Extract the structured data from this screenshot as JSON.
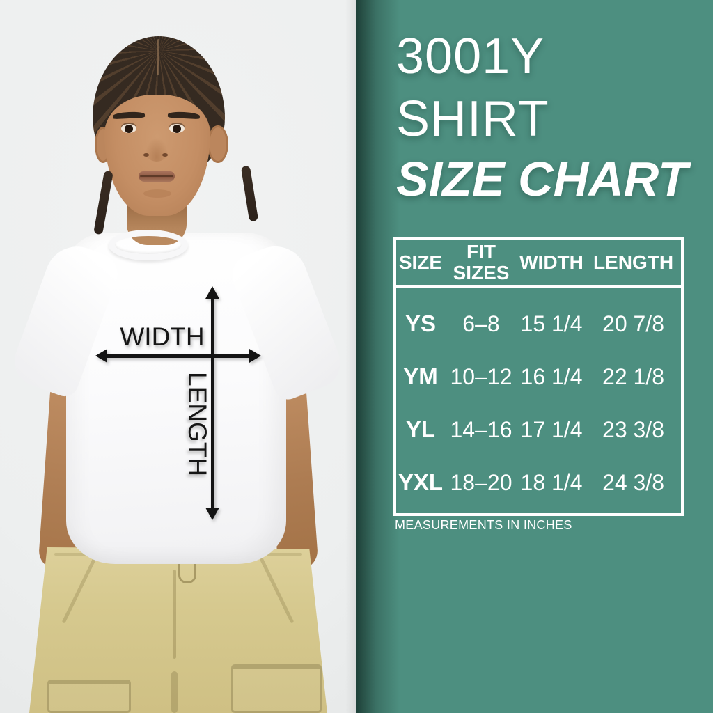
{
  "photo": {
    "description": "child model wearing white t-shirt and khaki cargo shorts",
    "width_label": "WIDTH",
    "length_label": "LENGTH",
    "arrow_color": "#141414",
    "background_color": "#edefef",
    "shirt_color": "#fbfbfc",
    "shorts_color": "#d6c98f",
    "skin_color": "#c48e64",
    "hair_color": "#352a21"
  },
  "panel": {
    "title_line1": "3001Y",
    "title_line2": "SHIRT",
    "title_line3": "SIZE CHART",
    "footnote": "MEASUREMENTS IN INCHES",
    "colors": {
      "background": "#4d8f80",
      "text": "#ffffff",
      "table_border": "#ffffff"
    }
  },
  "chart_data": {
    "type": "table",
    "title": "3001Y SHIRT SIZE CHART",
    "units": "inches",
    "columns": [
      "SIZE",
      "FIT SIZES",
      "WIDTH",
      "LENGTH"
    ],
    "rows": [
      [
        "YS",
        "6–8",
        "15 1/4",
        "20 7/8"
      ],
      [
        "YM",
        "10–12",
        "16 1/4",
        "22 1/8"
      ],
      [
        "YL",
        "14–16",
        "17 1/4",
        "23 3/8"
      ],
      [
        "YXL",
        "18–20",
        "18 1/4",
        "24 3/8"
      ]
    ]
  }
}
